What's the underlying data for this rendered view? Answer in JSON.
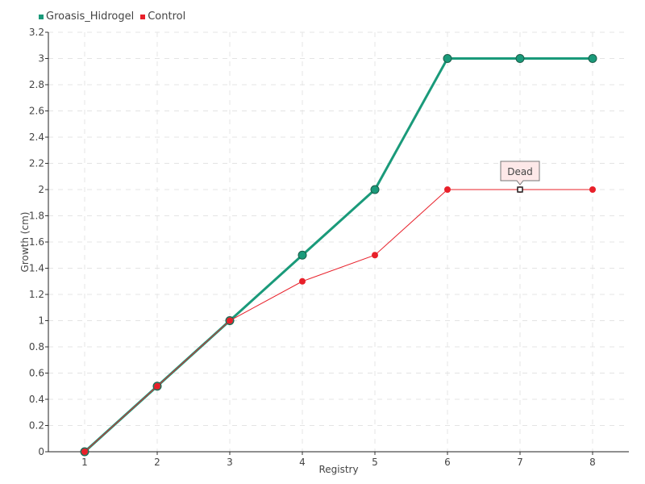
{
  "chart_data": {
    "type": "line",
    "xlabel": "Registry",
    "ylabel": "Growth (cm)",
    "x": [
      1,
      2,
      3,
      4,
      5,
      6,
      7,
      8
    ],
    "xlim": [
      0.5,
      8.5
    ],
    "ylim": [
      0,
      3.2
    ],
    "yticks": [
      "0",
      "0.2",
      "0.4",
      "0.6",
      "0.8",
      "1",
      "1.2",
      "1.4",
      "1.6",
      "1.8",
      "2",
      "2.2",
      "2.4",
      "2.6",
      "2.8",
      "3",
      "3.2"
    ],
    "xticks": [
      "1",
      "2",
      "3",
      "4",
      "5",
      "6",
      "7",
      "8"
    ],
    "grid": true,
    "legend": "top-left",
    "series": [
      {
        "name": "Groasis_Hidrogel",
        "color": "#1a9a7a",
        "values": [
          0,
          0.5,
          1,
          1.5,
          2,
          3,
          3,
          3
        ]
      },
      {
        "name": "Control",
        "color": "#e8202a",
        "values": [
          0,
          0.5,
          1,
          1.3,
          1.5,
          2,
          2,
          2
        ]
      }
    ],
    "annotations": [
      {
        "text": "Dead",
        "series": "Control",
        "x": 7,
        "y": 2
      }
    ]
  }
}
